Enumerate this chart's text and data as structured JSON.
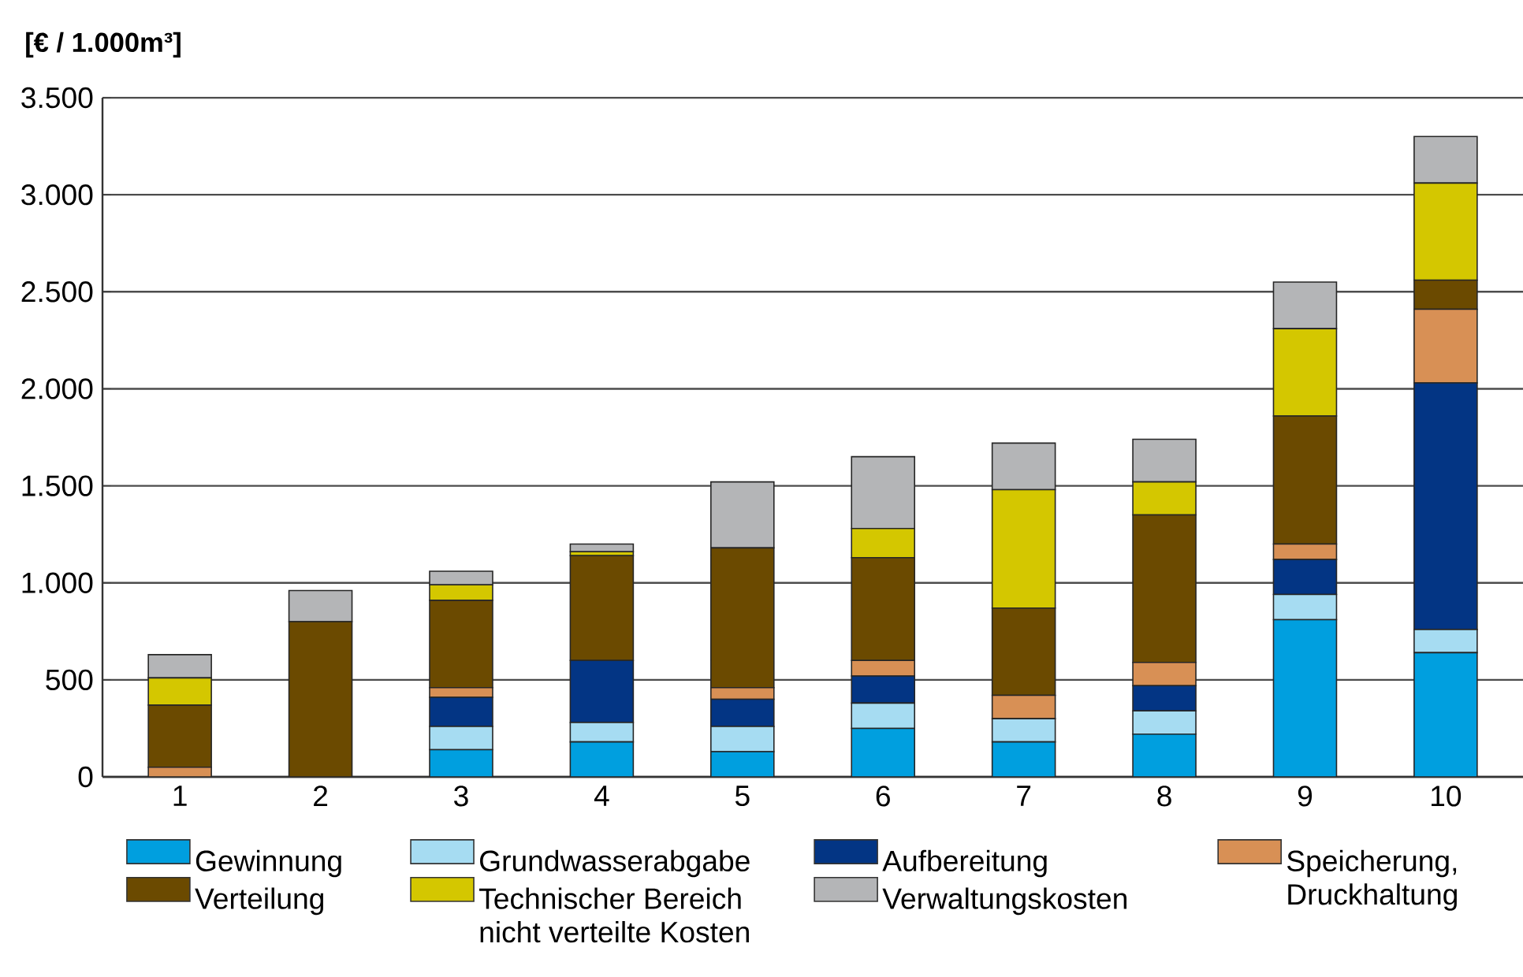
{
  "chart_data": {
    "type": "bar",
    "stacked": true,
    "ylabel": "[€ / 1.000m³]",
    "categories": [
      "1",
      "2",
      "3",
      "4",
      "5",
      "6",
      "7",
      "8",
      "9",
      "10"
    ],
    "series": [
      {
        "name": "Gewinnung",
        "color": "#009fdf",
        "values": [
          0,
          0,
          140,
          180,
          130,
          250,
          180,
          220,
          810,
          640
        ]
      },
      {
        "name": "Grundwasserabgabe",
        "color": "#a6dcf2",
        "values": [
          0,
          0,
          120,
          100,
          130,
          130,
          120,
          120,
          130,
          120
        ]
      },
      {
        "name": "Aufbereitung",
        "color": "#033584",
        "values": [
          0,
          0,
          150,
          320,
          140,
          140,
          0,
          130,
          180,
          1270
        ]
      },
      {
        "name": "Speicherung, Druckhaltung",
        "color": "#d89055",
        "values": [
          50,
          0,
          50,
          0,
          60,
          80,
          120,
          120,
          80,
          380
        ]
      },
      {
        "name": "Verteilung",
        "color": "#6b4a00",
        "values": [
          320,
          800,
          450,
          540,
          720,
          530,
          450,
          760,
          660,
          150
        ]
      },
      {
        "name": "Technischer Bereich nicht verteilte Kosten",
        "color": "#d4c700",
        "values": [
          140,
          0,
          80,
          20,
          0,
          150,
          610,
          170,
          450,
          500
        ]
      },
      {
        "name": "Verwaltungskosten",
        "color": "#b4b5b7",
        "values": [
          120,
          160,
          70,
          40,
          340,
          370,
          240,
          220,
          240,
          240
        ]
      }
    ],
    "ylim": [
      0,
      3500
    ],
    "yticks": [
      {
        "value": 0,
        "label": "0"
      },
      {
        "value": 500,
        "label": "500"
      },
      {
        "value": 1000,
        "label": "1.000"
      },
      {
        "value": 1500,
        "label": "1.500"
      },
      {
        "value": 2000,
        "label": "2.000"
      },
      {
        "value": 2500,
        "label": "2.500"
      },
      {
        "value": 3000,
        "label": "3.000"
      },
      {
        "value": 3500,
        "label": "3.500"
      }
    ],
    "grid": "y",
    "legend": "bottom"
  }
}
